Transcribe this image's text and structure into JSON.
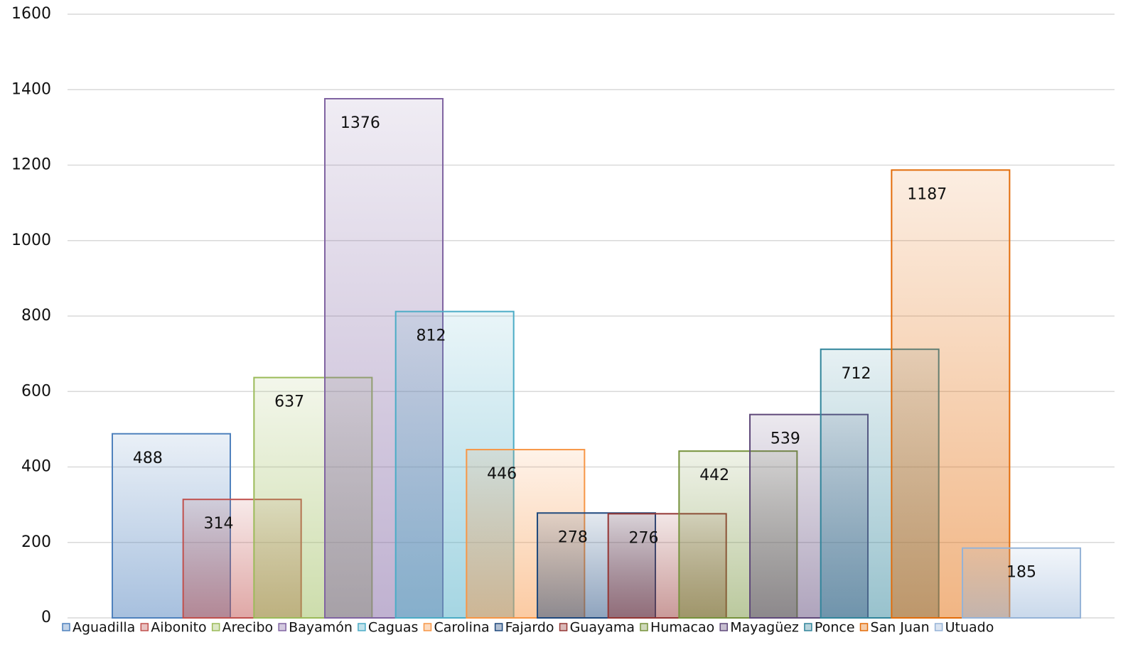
{
  "chart_data": {
    "type": "bar",
    "series": [
      {
        "name": "Aguadilla",
        "color": "#4f81bd",
        "values": [
          488
        ]
      },
      {
        "name": "Aibonito",
        "color": "#c0504d",
        "values": [
          314
        ]
      },
      {
        "name": "Arecibo",
        "color": "#9bbb59",
        "values": [
          637
        ]
      },
      {
        "name": "Bayamón",
        "color": "#8064a2",
        "values": [
          1376
        ]
      },
      {
        "name": "Caguas",
        "color": "#4bacc6",
        "values": [
          812
        ]
      },
      {
        "name": "Carolina",
        "color": "#f79646",
        "values": [
          446
        ]
      },
      {
        "name": "Fajardo",
        "color": "#1f497d",
        "values": [
          278
        ]
      },
      {
        "name": "Guayama",
        "color": "#943634",
        "values": [
          276
        ]
      },
      {
        "name": "Humacao",
        "color": "#76923c",
        "values": [
          442
        ]
      },
      {
        "name": "Mayagüez",
        "color": "#5f497a",
        "values": [
          539
        ]
      },
      {
        "name": "Ponce",
        "color": "#31859b",
        "values": [
          712
        ]
      },
      {
        "name": "San Juan",
        "color": "#e36c09",
        "values": [
          1187
        ]
      },
      {
        "name": "Utuado",
        "color": "#95b3d7",
        "values": [
          185
        ]
      }
    ],
    "ylim": [
      0,
      1600
    ],
    "yticks": [
      0,
      200,
      400,
      600,
      800,
      1000,
      1200,
      1400,
      1600
    ],
    "grid": true,
    "legend": "bottom"
  }
}
